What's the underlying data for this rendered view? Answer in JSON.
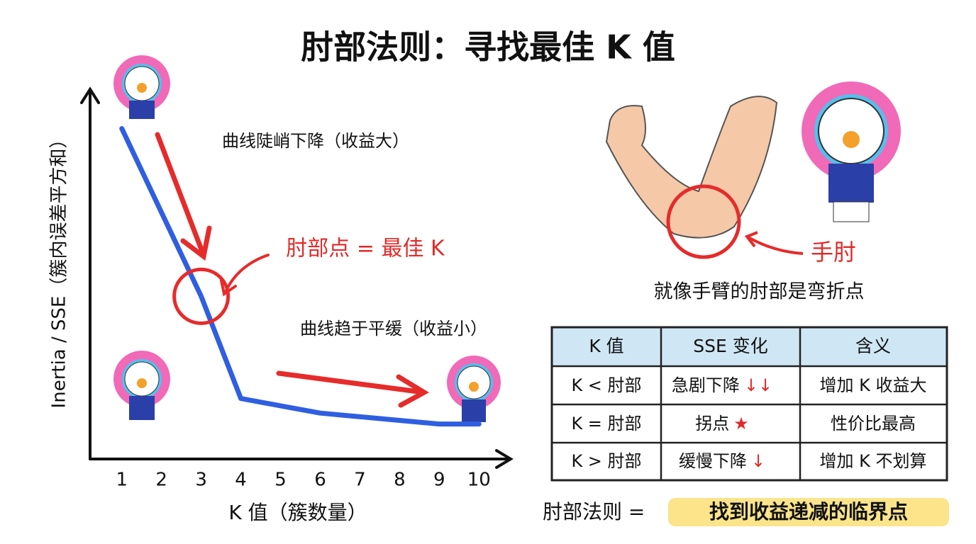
{
  "title": "肘部法则：寻找最佳 K 值",
  "chart_data": {
    "type": "line",
    "x": [
      1,
      2,
      3,
      4,
      5,
      6,
      7,
      8,
      9,
      10
    ],
    "series": [
      {
        "name": "Inertia / SSE",
        "color": "#2f5fe0",
        "values": [
          90,
          67,
          44,
          16,
          14,
          12,
          11,
          10,
          9,
          9
        ]
      }
    ],
    "xlim": [
      0.2,
      10.8
    ],
    "ylim": [
      0,
      100
    ],
    "xticks": [
      1,
      2,
      3,
      4,
      5,
      6,
      7,
      8,
      9,
      10
    ],
    "xlabel": "K 值（簇数量）",
    "ylabel": "Inertia / SSE（簇内误差平方和）",
    "elbow_x": 3,
    "annotations": [
      "曲线陡峭下降（收益大）",
      "肘部点 = 最佳 K",
      "曲线趋于平缓（收益小）"
    ]
  },
  "arm": {
    "label": "手肘",
    "caption": "就像手臂的肘部是弯折点"
  },
  "table": {
    "header": [
      "K 值",
      "SSE 变化",
      "含义"
    ],
    "rows": [
      [
        "K < 肘部",
        "急剧下降",
        "增加 K 收益大"
      ],
      [
        "K = 肘部",
        "拐点",
        "性价比最高"
      ],
      [
        "K > 肘部",
        "缓慢下降",
        "增加 K 不划算"
      ]
    ],
    "trend_marks": [
      "↓↓",
      "★",
      "↓"
    ]
  },
  "footer": {
    "lead": "肘部法则 =",
    "highlight": "找到收益递减的临界点"
  }
}
